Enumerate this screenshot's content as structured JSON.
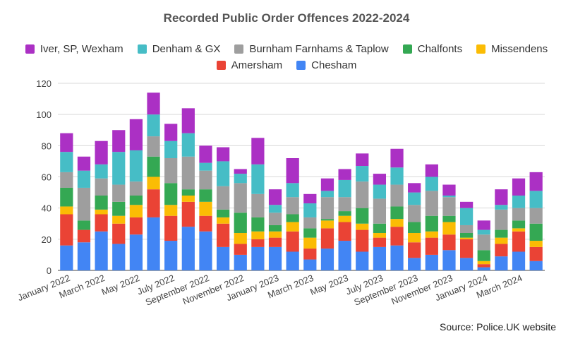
{
  "source_text": "Source: Police.UK website",
  "chart_data": {
    "type": "bar",
    "stacked": true,
    "title": "Recorded Public Order Offences 2022-2024",
    "xlabel": "",
    "ylabel": "",
    "ylim": [
      0,
      120
    ],
    "yticks": [
      0,
      20,
      40,
      60,
      80,
      100,
      120
    ],
    "grid": true,
    "legend_position": "top",
    "categories": [
      "Jan 2022",
      "Feb 2022",
      "Mar 2022",
      "Apr 2022",
      "May 2022",
      "Jun 2022",
      "Jul 2022",
      "Aug 2022",
      "Sep 2022",
      "Oct 2022",
      "Nov 2022",
      "Dec 2022",
      "Jan 2023",
      "Feb 2023",
      "Mar 2023",
      "Apr 2023",
      "May 2023",
      "Jun 2023",
      "Jul 2023",
      "Aug 2023",
      "Sep 2023",
      "Oct 2023",
      "Nov 2023",
      "Dec 2023",
      "Jan 2024",
      "Feb 2024",
      "Mar 2024",
      "Apr 2024"
    ],
    "x_tick_labels": [
      "January 2022",
      "",
      "March 2022",
      "",
      "May 2022",
      "",
      "July 2022",
      "",
      "September 2022",
      "",
      "November 2022",
      "",
      "January 2023",
      "",
      "March 2023",
      "",
      "May 2023",
      "",
      "July 2023",
      "",
      "September 2023",
      "",
      "November 2023",
      "",
      "January 2024",
      "",
      "March 2024",
      ""
    ],
    "legend_order": [
      "Iver, SP, Wexham",
      "Denham & GX",
      "Burnham Farnhams & Taplow",
      "Chalfonts",
      "Missendens",
      "Amersham",
      "Chesham"
    ],
    "series": [
      {
        "name": "Chesham",
        "color": "#4285f4",
        "values": [
          16,
          18,
          25,
          17,
          23,
          34,
          19,
          28,
          25,
          15,
          10,
          15,
          15,
          12,
          7,
          14,
          19,
          12,
          15,
          16,
          8,
          10,
          13,
          8,
          2,
          9,
          12,
          6
        ]
      },
      {
        "name": "Amersham",
        "color": "#ea4335",
        "values": [
          20,
          8,
          11,
          13,
          11,
          18,
          16,
          16,
          10,
          15,
          7,
          5,
          6,
          13,
          7,
          13,
          12,
          14,
          6,
          12,
          10,
          11,
          10,
          12,
          2,
          8,
          13,
          9
        ]
      },
      {
        "name": "Missendens",
        "color": "#fbbc04",
        "values": [
          5,
          0,
          3,
          5,
          8,
          8,
          7,
          4,
          9,
          4,
          7,
          5,
          4,
          6,
          7,
          5,
          4,
          4,
          3,
          5,
          6,
          4,
          8,
          1,
          2,
          4,
          2,
          4
        ]
      },
      {
        "name": "Chalfonts",
        "color": "#34a853",
        "values": [
          12,
          6,
          9,
          9,
          6,
          13,
          14,
          4,
          8,
          5,
          13,
          9,
          4,
          5,
          6,
          1,
          3,
          10,
          6,
          8,
          7,
          10,
          4,
          3,
          7,
          5,
          5,
          11
        ]
      },
      {
        "name": "Burnham Farnhams & Taplow",
        "color": "#9e9e9e",
        "values": [
          10,
          21,
          11,
          11,
          9,
          13,
          16,
          21,
          12,
          15,
          19,
          15,
          8,
          11,
          7,
          14,
          9,
          17,
          16,
          14,
          11,
          16,
          12,
          5,
          10,
          13,
          8,
          10
        ]
      },
      {
        "name": "Denham & GX",
        "color": "#46bdc6",
        "values": [
          13,
          11,
          9,
          21,
          20,
          14,
          11,
          15,
          5,
          16,
          6,
          19,
          5,
          9,
          9,
          4,
          11,
          10,
          9,
          11,
          8,
          9,
          1,
          11,
          3,
          3,
          8,
          11
        ]
      },
      {
        "name": "Iver, SP, Wexham",
        "color": "#ab30c4",
        "values": [
          12,
          9,
          15,
          14,
          20,
          14,
          11,
          16,
          11,
          9,
          3,
          17,
          10,
          16,
          6,
          8,
          7,
          8,
          7,
          12,
          6,
          8,
          7,
          4,
          6,
          10,
          11,
          12
        ]
      }
    ]
  }
}
